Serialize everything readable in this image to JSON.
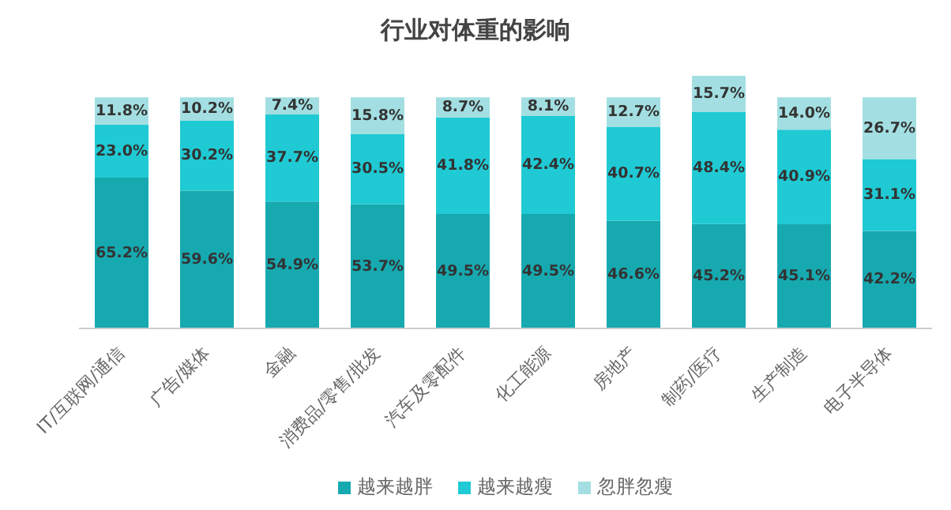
{
  "chart_data": {
    "type": "bar",
    "title": "行业对体重的影响",
    "stacked": true,
    "legend": "bottom",
    "categories": [
      "IT/互联网/通信",
      "广告/媒体",
      "金融",
      "消费品/零售/批发",
      "汽车及零配件",
      "化工能源",
      "房地产",
      "制药/医疗",
      "生产制造",
      "电子半导体"
    ],
    "series": [
      {
        "name": "越来越胖",
        "color": "#17a9b0",
        "values": [
          65.2,
          59.6,
          54.9,
          53.7,
          49.5,
          49.5,
          46.6,
          45.2,
          45.1,
          42.2
        ],
        "value_labels": [
          "65.2%",
          "59.6%",
          "54.9%",
          "53.7%",
          "49.5%",
          "49.5%",
          "46.6%",
          "45.2%",
          "45.1%",
          "42.2%"
        ]
      },
      {
        "name": "越来越瘦",
        "color": "#1fcad4",
        "values": [
          23.0,
          30.2,
          37.7,
          30.5,
          41.8,
          42.4,
          40.7,
          48.4,
          40.9,
          31.1
        ],
        "value_labels": [
          "23.0%",
          "30.2%",
          "37.7%",
          "30.5%",
          "41.8%",
          "42.4%",
          "40.7%",
          "48.4%",
          "40.9%",
          "31.1%"
        ]
      },
      {
        "name": "忽胖忽瘦",
        "color": "#a3dfe2",
        "values": [
          11.8,
          10.2,
          7.4,
          15.8,
          8.7,
          8.1,
          12.7,
          15.7,
          14.0,
          26.7
        ],
        "value_labels": [
          "11.8%",
          "10.2%",
          "7.4%",
          "15.8%",
          "8.7%",
          "8.1%",
          "12.7%",
          "15.7%",
          "14.0%",
          "26.7%"
        ]
      }
    ]
  }
}
